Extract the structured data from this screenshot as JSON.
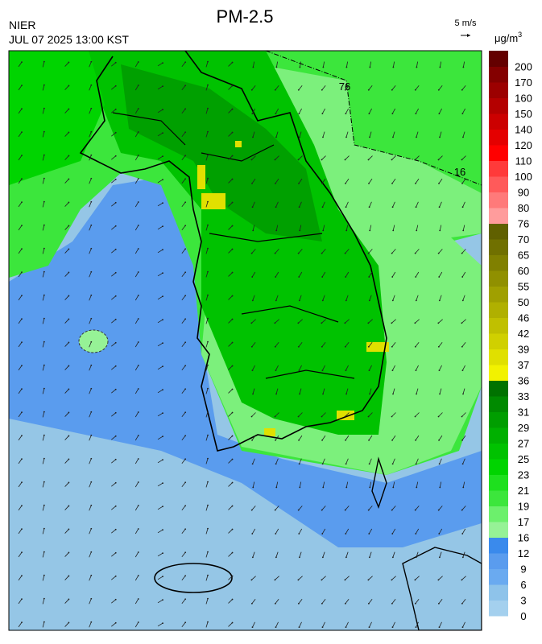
{
  "header": {
    "title": "PM-2.5",
    "agency": "NIER",
    "timestamp": "JUL 07 2025 13:00 KST"
  },
  "wind_scale": "5 m/s",
  "contour_labels": [
    "76",
    "16"
  ],
  "colorbar": {
    "unit": "μg/m",
    "unit_exponent": "3",
    "labels": [
      "0",
      "3",
      "6",
      "9",
      "12",
      "16",
      "17",
      "19",
      "21",
      "23",
      "25",
      "27",
      "29",
      "31",
      "33",
      "36",
      "37",
      "39",
      "42",
      "46",
      "50",
      "55",
      "60",
      "65",
      "70",
      "76",
      "80",
      "90",
      "100",
      "110",
      "120",
      "140",
      "150",
      "160",
      "170",
      "200"
    ],
    "colors": [
      "#a4d0ee",
      "#8ec3ea",
      "#6aaaf0",
      "#5a9cee",
      "#3a8aec",
      "#96f296",
      "#6cf06c",
      "#3ce63c",
      "#1ee01e",
      "#00d400",
      "#00c200",
      "#00b000",
      "#009e00",
      "#008a00",
      "#007200",
      "#f2f200",
      "#e0e000",
      "#d0d000",
      "#c0c000",
      "#b0b000",
      "#a0a000",
      "#909000",
      "#808000",
      "#707000",
      "#606000",
      "#ff9c9c",
      "#ff7a7a",
      "#ff5a5a",
      "#ff3a3a",
      "#ff0000",
      "#e40000",
      "#cc0000",
      "#b40000",
      "#9c0000",
      "#840000",
      "#640000"
    ]
  }
}
